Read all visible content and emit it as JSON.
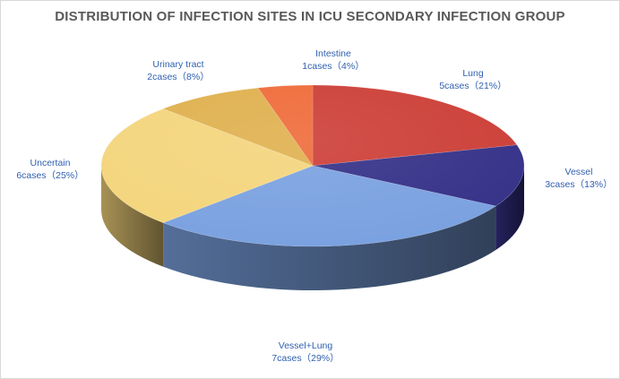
{
  "chart_data": {
    "type": "pie",
    "title": "DISTRIBUTION OF INFECTION SITES IN ICU SECONDARY INFECTION GROUP",
    "slices": [
      {
        "name": "Lung",
        "value": 5,
        "percent": 21,
        "color": "#cc3f37",
        "label_cases": "5cases（21%）"
      },
      {
        "name": "Vessel",
        "value": 3,
        "percent": 13,
        "color": "#353188",
        "label_cases": "3cases（13%）"
      },
      {
        "name": "Vessel+Lung",
        "value": 7,
        "percent": 29,
        "color": "#7aa1e0",
        "label_cases": "7cases（29%）"
      },
      {
        "name": "Uncertain",
        "value": 6,
        "percent": 25,
        "color": "#f4d57c",
        "label_cases": "6cases（25%）"
      },
      {
        "name": "Urinary tract",
        "value": 2,
        "percent": 8,
        "color": "#dfb04e",
        "label_cases": "2cases（8%）"
      },
      {
        "name": "Intestine",
        "value": 1,
        "percent": 4,
        "color": "#ef6b3a",
        "label_cases": "1cases（4%）"
      }
    ],
    "start_angle_deg": -90,
    "direction": "clockwise",
    "label_color": "#2f5fb0"
  }
}
